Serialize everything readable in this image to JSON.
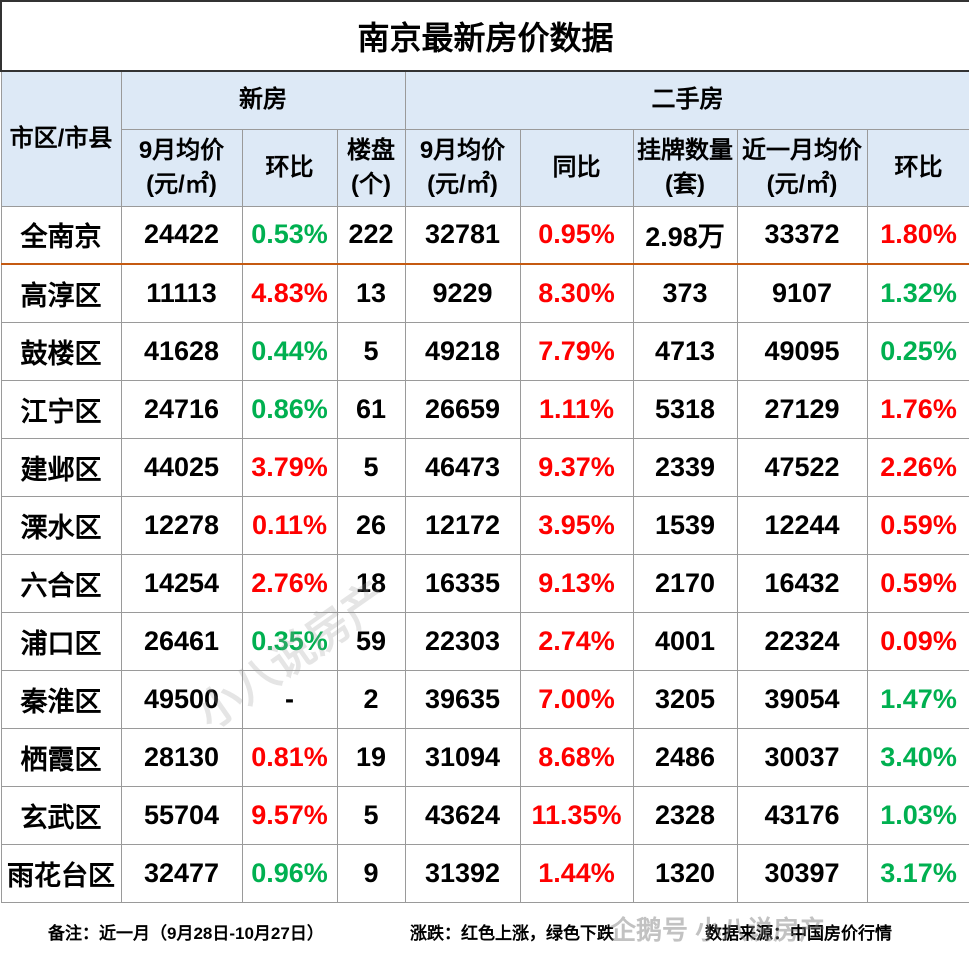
{
  "title": "南京最新房价数据",
  "header": {
    "region": "市区/市县",
    "new_house": "新房",
    "second_hand": "二手房",
    "columns": [
      "9月均价(元/㎡)",
      "环比",
      "楼盘(个)",
      "9月均价(元/㎡)",
      "同比",
      "挂牌数量(套)",
      "近一月均价(元/㎡)",
      "环比"
    ]
  },
  "table": {
    "rows": [
      {
        "cells": [
          "全南京",
          "24422",
          "0.53%",
          "222",
          "32781",
          "0.95%",
          "2.98万",
          "33372",
          "1.80%"
        ],
        "colors": [
          "#000000",
          "#000000",
          "#00b050",
          "#000000",
          "#000000",
          "#ff0000",
          "#000000",
          "#000000",
          "#ff0000"
        ]
      },
      {
        "cells": [
          "高淳区",
          "11113",
          "4.83%",
          "13",
          "9229",
          "8.30%",
          "373",
          "9107",
          "1.32%"
        ],
        "colors": [
          "#000000",
          "#000000",
          "#ff0000",
          "#000000",
          "#000000",
          "#ff0000",
          "#000000",
          "#000000",
          "#00b050"
        ]
      },
      {
        "cells": [
          "鼓楼区",
          "41628",
          "0.44%",
          "5",
          "49218",
          "7.79%",
          "4713",
          "49095",
          "0.25%"
        ],
        "colors": [
          "#000000",
          "#000000",
          "#00b050",
          "#000000",
          "#000000",
          "#ff0000",
          "#000000",
          "#000000",
          "#00b050"
        ]
      },
      {
        "cells": [
          "江宁区",
          "24716",
          "0.86%",
          "61",
          "26659",
          "1.11%",
          "5318",
          "27129",
          "1.76%"
        ],
        "colors": [
          "#000000",
          "#000000",
          "#00b050",
          "#000000",
          "#000000",
          "#ff0000",
          "#000000",
          "#000000",
          "#ff0000"
        ]
      },
      {
        "cells": [
          "建邺区",
          "44025",
          "3.79%",
          "5",
          "46473",
          "9.37%",
          "2339",
          "47522",
          "2.26%"
        ],
        "colors": [
          "#000000",
          "#000000",
          "#ff0000",
          "#000000",
          "#000000",
          "#ff0000",
          "#000000",
          "#000000",
          "#ff0000"
        ]
      },
      {
        "cells": [
          "溧水区",
          "12278",
          "0.11%",
          "26",
          "12172",
          "3.95%",
          "1539",
          "12244",
          "0.59%"
        ],
        "colors": [
          "#000000",
          "#000000",
          "#ff0000",
          "#000000",
          "#000000",
          "#ff0000",
          "#000000",
          "#000000",
          "#ff0000"
        ]
      },
      {
        "cells": [
          "六合区",
          "14254",
          "2.76%",
          "18",
          "16335",
          "9.13%",
          "2170",
          "16432",
          "0.59%"
        ],
        "colors": [
          "#000000",
          "#000000",
          "#ff0000",
          "#000000",
          "#000000",
          "#ff0000",
          "#000000",
          "#000000",
          "#ff0000"
        ]
      },
      {
        "cells": [
          "浦口区",
          "26461",
          "0.35%",
          "59",
          "22303",
          "2.74%",
          "4001",
          "22324",
          "0.09%"
        ],
        "colors": [
          "#000000",
          "#000000",
          "#00b050",
          "#000000",
          "#000000",
          "#ff0000",
          "#000000",
          "#000000",
          "#ff0000"
        ]
      },
      {
        "cells": [
          "秦淮区",
          "49500",
          "-",
          "2",
          "39635",
          "7.00%",
          "3205",
          "39054",
          "1.47%"
        ],
        "colors": [
          "#000000",
          "#000000",
          "#000000",
          "#000000",
          "#000000",
          "#ff0000",
          "#000000",
          "#000000",
          "#00b050"
        ]
      },
      {
        "cells": [
          "栖霞区",
          "28130",
          "0.81%",
          "19",
          "31094",
          "8.68%",
          "2486",
          "30037",
          "3.40%"
        ],
        "colors": [
          "#000000",
          "#000000",
          "#ff0000",
          "#000000",
          "#000000",
          "#ff0000",
          "#000000",
          "#000000",
          "#00b050"
        ]
      },
      {
        "cells": [
          "玄武区",
          "55704",
          "9.57%",
          "5",
          "43624",
          "11.35%",
          "2328",
          "43176",
          "1.03%"
        ],
        "colors": [
          "#000000",
          "#000000",
          "#ff0000",
          "#000000",
          "#000000",
          "#ff0000",
          "#000000",
          "#000000",
          "#00b050"
        ]
      },
      {
        "cells": [
          "雨花台区",
          "32477",
          "0.96%",
          "9",
          "31392",
          "1.44%",
          "1320",
          "30397",
          "3.17%"
        ],
        "colors": [
          "#000000",
          "#000000",
          "#00b050",
          "#000000",
          "#000000",
          "#ff0000",
          "#000000",
          "#000000",
          "#00b050"
        ]
      }
    ]
  },
  "footer": {
    "note": "备注：近一月（9月28日-10月27日）",
    "legend": "涨跌：红色上涨，绿色下跌",
    "source": "数据来源：中国房价行情"
  },
  "watermarks": [
    "小八说房产",
    "企鹅号 小八说房产"
  ]
}
